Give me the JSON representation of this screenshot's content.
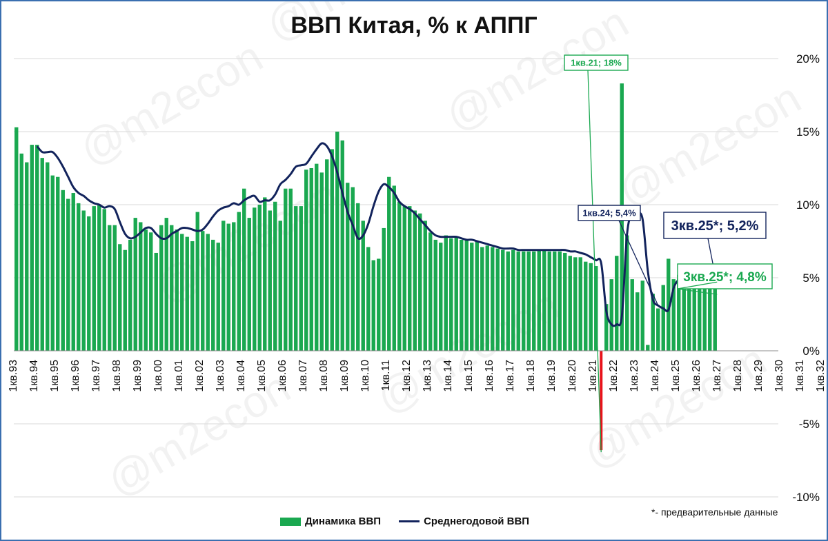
{
  "chart_data": {
    "type": "bar",
    "title": "ВВП Китая, % к АППГ",
    "xlabel": "",
    "ylabel": "",
    "ylim": [
      -10,
      20
    ],
    "y_ticks": [
      "-10%",
      "-5%",
      "0%",
      "5%",
      "10%",
      "15%",
      "20%"
    ],
    "grid": true,
    "legend_position": "bottom",
    "x_tick_labels": [
      "1кв.93",
      "1кв.94",
      "1кв.95",
      "1кв.96",
      "1кв.97",
      "1кв.98",
      "1кв.99",
      "1кв.00",
      "1кв.01",
      "1кв.02",
      "1кв.03",
      "1кв.04",
      "1кв.05",
      "1кв.06",
      "1кв.07",
      "1кв.08",
      "1кв.09",
      "1кв.10",
      "1кв.11",
      "1кв.12",
      "1кв.13",
      "1кв.14",
      "1кв.15",
      "1кв.16",
      "1кв.17",
      "1кв.18",
      "1кв.19",
      "1кв.20",
      "1кв.21",
      "1кв.22",
      "1кв.23",
      "1кв.24",
      "1кв.25",
      "1кв.26",
      "1кв.27",
      "1кв.28",
      "1кв.29",
      "1кв.30",
      "1кв.31",
      "1кв.32"
    ],
    "series": [
      {
        "name": "Динамика ВВП",
        "type": "bar",
        "color": "#1aa850",
        "values": [
          15.3,
          13.5,
          12.9,
          14.1,
          14.1,
          13.2,
          12.9,
          12.0,
          11.9,
          11.0,
          10.4,
          10.8,
          10.1,
          9.6,
          9.2,
          9.9,
          10.0,
          9.7,
          8.6,
          8.6,
          7.3,
          6.9,
          7.6,
          9.1,
          8.8,
          8.3,
          8.1,
          6.7,
          8.6,
          9.1,
          8.6,
          8.3,
          8.0,
          7.8,
          7.5,
          9.5,
          8.2,
          8.0,
          7.6,
          7.4,
          8.9,
          8.7,
          8.8,
          9.5,
          11.1,
          9.1,
          9.8,
          10.0,
          10.5,
          9.6,
          10.2,
          8.9,
          11.1,
          11.1,
          9.9,
          9.9,
          12.4,
          12.5,
          12.8,
          12.2,
          13.1,
          13.8,
          15.0,
          14.4,
          11.5,
          11.2,
          10.1,
          8.9,
          7.1,
          6.2,
          6.3,
          8.4,
          11.9,
          11.3,
          10.2,
          9.9,
          9.9,
          9.6,
          9.4,
          8.9,
          8.1,
          7.6,
          7.4,
          7.9,
          7.7,
          7.8,
          7.6,
          7.6,
          7.4,
          7.5,
          7.1,
          7.2,
          7.1,
          7.0,
          6.9,
          6.8,
          6.9,
          6.8,
          6.8,
          6.8,
          6.8,
          6.9,
          6.9,
          6.8,
          6.8,
          6.8,
          6.7,
          6.5,
          6.4,
          6.4,
          6.1,
          6.0,
          5.8,
          -6.8,
          3.2,
          4.9,
          6.5,
          18.3,
          7.9,
          4.9,
          4.0,
          4.8,
          0.4,
          3.9,
          2.9,
          4.5,
          6.3,
          4.9,
          5.2,
          5.4,
          4.7,
          4.6,
          5.4,
          5.4,
          5.2,
          4.8
        ],
        "labels": [
          {
            "text": "1кв.21; 18%",
            "color": "#1aa850"
          },
          {
            "text": "3кв.25*; 4,8%",
            "color": "#1aa850"
          }
        ]
      },
      {
        "name": "Среднегодовой ВВП",
        "type": "line",
        "color": "#12235c",
        "start_quarter": 4,
        "values": [
          14.0,
          13.6,
          13.6,
          13.6,
          13.2,
          12.6,
          11.9,
          11.2,
          10.8,
          10.6,
          10.3,
          10.1,
          10.0,
          9.8,
          9.9,
          9.7,
          8.8,
          8.0,
          7.7,
          7.8,
          8.1,
          8.4,
          8.4,
          8.0,
          7.7,
          7.7,
          8.0,
          8.2,
          8.4,
          8.4,
          8.3,
          8.2,
          8.3,
          8.7,
          9.2,
          9.6,
          9.8,
          9.9,
          10.1,
          10.0,
          10.3,
          10.5,
          10.6,
          10.2,
          10.3,
          10.3,
          10.7,
          11.4,
          11.7,
          12.1,
          12.6,
          12.7,
          12.8,
          13.3,
          13.8,
          14.2,
          14.0,
          13.3,
          12.2,
          10.8,
          9.5,
          8.6,
          7.7,
          7.9,
          8.7,
          9.9,
          10.9,
          11.4,
          11.2,
          10.8,
          10.2,
          9.9,
          9.7,
          9.4,
          9.0,
          8.6,
          8.2,
          7.9,
          7.8,
          7.8,
          7.8,
          7.8,
          7.7,
          7.6,
          7.6,
          7.5,
          7.4,
          7.3,
          7.2,
          7.1,
          7.0,
          7.0,
          7.0,
          6.9,
          6.9,
          6.9,
          6.9,
          6.9,
          6.9,
          6.9,
          6.9,
          6.9,
          6.9,
          6.8,
          6.8,
          6.7,
          6.6,
          6.4,
          6.2,
          6.0,
          2.7,
          1.8,
          1.8,
          2.4,
          8.0,
          9.4,
          9.4,
          9.0,
          5.5,
          3.5,
          3.1,
          2.9,
          2.8,
          4.3,
          4.9,
          5.2,
          5.4,
          5.1,
          5.0,
          5.0,
          5.1,
          5.2
        ],
        "labels": [
          {
            "text": "1кв.24; 5,4%",
            "color": "#12235c"
          },
          {
            "text": "3кв.25*; 5,2%",
            "color": "#12235c"
          }
        ]
      }
    ],
    "footnote": "*- предварительные данные",
    "watermark": "@m2econ"
  }
}
